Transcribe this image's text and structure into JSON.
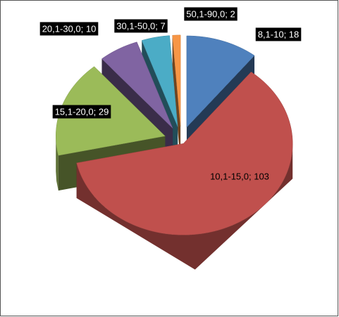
{
  "chart_data": {
    "type": "pie",
    "values": [
      18,
      103,
      29,
      10,
      7,
      2
    ],
    "value_labels": [
      "8,1-10; 18",
      "10,1-15,0; 103",
      "15,1-20,0; 29",
      "20,1-30,0; 10",
      "30,1-50,0; 7",
      "50,1-90,0; 2"
    ],
    "colors": [
      "#4f81bd",
      "#c0504d",
      "#9bbb59",
      "#8064a2",
      "#4bacc6",
      "#f79646"
    ]
  }
}
